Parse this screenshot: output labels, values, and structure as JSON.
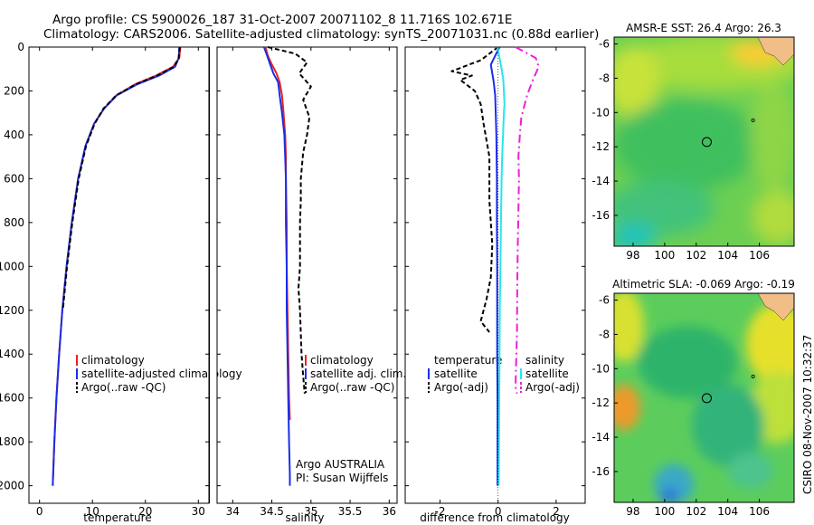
{
  "header": {
    "title_line1": "Argo profile: CS 5900026_187 31-Oct-2007 20071102_8 11.716S 102.671E",
    "title_line2": "Climatology: CARS2006. Satellite-adjusted climatology: synTS_20071031.nc (0.88d earlier)"
  },
  "stamp": "CSIRO 08-Nov-2007 10:32:37",
  "colors": {
    "climatology": "#e8231f",
    "satellite": "#1a2ee8",
    "argo": "#000000",
    "sat_salinity": "#27e6ea",
    "argo_salinity": "#ef1fd6"
  },
  "chart_data": [
    {
      "type": "line",
      "id": "temperature-panel",
      "xlabel": "temperature",
      "xlim": [
        -2,
        32
      ],
      "ylim": [
        2080,
        0
      ],
      "xticks": [
        "0",
        "10",
        "20",
        "30"
      ],
      "xtick_values": [
        0,
        10,
        20,
        30
      ],
      "yticks": [
        "0",
        "200",
        "400",
        "600",
        "800",
        "1000",
        "1200",
        "1400",
        "1600",
        "1800",
        "2000"
      ],
      "ytick_values": [
        0,
        200,
        400,
        600,
        800,
        1000,
        1200,
        1400,
        1600,
        1800,
        2000
      ],
      "legend": [
        "climatology",
        "satellite-adjusted climatology",
        "Argo(..raw -QC)"
      ],
      "series": [
        {
          "name": "climatology",
          "color": "#e8231f",
          "dash": "",
          "x": [
            26.6,
            26.4,
            25.2,
            22.0,
            18.0,
            14.5,
            12.2,
            10.3,
            8.7,
            7.3,
            6.1,
            5.1,
            4.3,
            3.7,
            3.2,
            2.8,
            2.5
          ],
          "y": [
            0,
            50,
            90,
            130,
            170,
            220,
            280,
            350,
            450,
            600,
            800,
            1000,
            1200,
            1400,
            1600,
            1800,
            2000
          ]
        },
        {
          "name": "satellite-adjusted climatology",
          "color": "#1a2ee8",
          "dash": "",
          "x": [
            26.4,
            26.3,
            25.6,
            22.6,
            18.4,
            14.6,
            12.2,
            10.3,
            8.7,
            7.3,
            6.1,
            5.1,
            4.3,
            3.7,
            3.2,
            2.8,
            2.5
          ],
          "y": [
            0,
            50,
            90,
            130,
            170,
            220,
            280,
            350,
            450,
            600,
            800,
            1000,
            1200,
            1400,
            1600,
            1800,
            2000
          ]
        },
        {
          "name": "Argo(..raw -QC)",
          "color": "#000000",
          "dash": "5,3",
          "x": [
            26.5,
            26.3,
            25.4,
            22.2,
            18.2,
            14.5,
            12.1,
            10.4,
            8.8,
            7.4,
            6.2,
            5.2,
            4.4
          ],
          "y": [
            0,
            50,
            90,
            130,
            170,
            220,
            280,
            350,
            450,
            600,
            800,
            1000,
            1200
          ]
        }
      ]
    },
    {
      "type": "line",
      "id": "salinity-panel",
      "xlabel": "salinity",
      "xlim": [
        33.8,
        36.1
      ],
      "ylim": [
        2080,
        0
      ],
      "xticks": [
        "34",
        "34.5",
        "35",
        "35.5",
        "36"
      ],
      "xtick_values": [
        34,
        34.5,
        35,
        35.5,
        36
      ],
      "legend": [
        "climatology",
        "satellite adj. clim.",
        "Argo(..raw -QC)"
      ],
      "annotation": [
        "Argo AUSTRALIA",
        "PI: Susan Wijffels"
      ],
      "series": [
        {
          "name": "climatology",
          "color": "#e8231f",
          "dash": "",
          "x": [
            34.42,
            34.45,
            34.5,
            34.56,
            34.6,
            34.63,
            34.65,
            34.67,
            34.68,
            34.68,
            34.69,
            34.69,
            34.7,
            34.71,
            34.72,
            34.73
          ],
          "y": [
            0,
            40,
            80,
            120,
            160,
            220,
            300,
            400,
            500,
            600,
            800,
            1000,
            1200,
            1400,
            1600,
            1700
          ]
        },
        {
          "name": "satellite adj. clim.",
          "color": "#1a2ee8",
          "dash": "",
          "x": [
            34.4,
            34.44,
            34.48,
            34.52,
            34.58,
            34.6,
            34.63,
            34.66,
            34.67,
            34.68,
            34.68,
            34.69,
            34.69,
            34.7,
            34.71,
            34.72,
            34.73,
            34.73
          ],
          "y": [
            0,
            40,
            80,
            120,
            160,
            220,
            300,
            400,
            500,
            600,
            800,
            1000,
            1200,
            1400,
            1600,
            1800,
            1950,
            2000
          ]
        },
        {
          "name": "Argo(..raw -QC)",
          "color": "#000000",
          "dash": "5,3",
          "x": [
            34.45,
            34.8,
            34.95,
            34.85,
            35.0,
            34.9,
            34.98,
            34.95,
            34.9,
            34.87,
            34.87,
            34.86,
            34.86,
            34.84,
            34.86,
            34.88,
            34.9,
            34.92
          ],
          "y": [
            0,
            30,
            70,
            120,
            180,
            240,
            320,
            400,
            480,
            600,
            700,
            800,
            1000,
            1100,
            1200,
            1400,
            1500,
            1580
          ]
        }
      ]
    },
    {
      "type": "line",
      "id": "difference-panel",
      "xlabel": "difference from climatology",
      "xlim": [
        -3.2,
        3.0
      ],
      "ylim": [
        2080,
        0
      ],
      "xticks": [
        "-2",
        "0",
        "2"
      ],
      "xtick_values": [
        -2,
        0,
        2
      ],
      "legend_temperature": [
        "temperature",
        "satellite",
        "Argo(-adj)"
      ],
      "legend_salinity": [
        "salinity",
        "satellite",
        "Argo(-adj)"
      ],
      "series": [
        {
          "name": "satellite",
          "color": "#1a2ee8",
          "dash": "",
          "x": [
            0.05,
            -0.1,
            -0.25,
            -0.2,
            -0.15,
            -0.1,
            -0.08,
            -0.06,
            -0.05,
            -0.04,
            -0.04,
            -0.03,
            -0.03,
            -0.03,
            -0.02,
            -0.02
          ],
          "y": [
            0,
            40,
            80,
            120,
            160,
            220,
            300,
            400,
            500,
            600,
            800,
            1000,
            1200,
            1400,
            1600,
            2000
          ]
        },
        {
          "name": "Argo(-adj)",
          "color": "#000000",
          "dash": "5,3",
          "x": [
            0.0,
            -0.6,
            -1.6,
            -0.9,
            -1.3,
            -0.8,
            -0.6,
            -0.5,
            -0.3,
            -0.3,
            -0.2,
            -0.25,
            -0.4,
            -0.6,
            -0.3
          ],
          "y": [
            0,
            60,
            110,
            130,
            150,
            200,
            260,
            350,
            500,
            700,
            900,
            1050,
            1150,
            1250,
            1300
          ]
        },
        {
          "name": "satellite",
          "color": "#27e6ea",
          "dash": "",
          "x": [
            -0.02,
            0.05,
            0.12,
            0.18,
            0.2,
            0.22,
            0.2,
            0.17,
            0.14,
            0.12,
            0.1,
            0.08,
            0.06,
            0.05,
            0.04,
            0.03,
            0.02
          ],
          "y": [
            0,
            50,
            100,
            150,
            200,
            260,
            300,
            400,
            500,
            600,
            800,
            1000,
            1200,
            1400,
            1600,
            1800,
            2000
          ]
        },
        {
          "name": "Argo(-adj)",
          "color": "#ef1fd6",
          "dash": "9,4,2,4",
          "x": [
            0.6,
            1.3,
            1.4,
            1.2,
            1.0,
            0.8,
            0.75,
            0.7,
            0.72,
            0.7,
            0.68,
            0.66,
            0.65,
            0.62,
            0.6,
            0.65
          ],
          "y": [
            0,
            50,
            90,
            150,
            220,
            320,
            400,
            500,
            600,
            750,
            900,
            1100,
            1300,
            1450,
            1550,
            1580
          ]
        }
      ]
    },
    {
      "type": "heatmap",
      "id": "sst-map",
      "title": "AMSR-E SST: 26.4 Argo: 26.3",
      "xlim": [
        96.8,
        108.2
      ],
      "ylim": [
        -17.8,
        -5.6
      ],
      "xticks": [
        "98",
        "100",
        "102",
        "104",
        "106"
      ],
      "xtick_values": [
        98,
        100,
        102,
        104,
        106
      ],
      "yticks": [
        "-6",
        "-8",
        "-10",
        "-12",
        "-14",
        "-16"
      ],
      "ytick_values": [
        -6,
        -8,
        -10,
        -12,
        -14,
        -16
      ],
      "marker": {
        "lon": 102.67,
        "lat": -11.72
      }
    },
    {
      "type": "heatmap",
      "id": "sla-map",
      "title": "Altimetric SLA: -0.069 Argo: -0.19",
      "xlim": [
        96.8,
        108.2
      ],
      "ylim": [
        -17.8,
        -5.6
      ],
      "xticks": [
        "98",
        "100",
        "102",
        "104",
        "106"
      ],
      "xtick_values": [
        98,
        100,
        102,
        104,
        106
      ],
      "yticks": [
        "-6",
        "-8",
        "-10",
        "-12",
        "-14",
        "-16"
      ],
      "ytick_values": [
        -6,
        -8,
        -10,
        -12,
        -14,
        -16
      ],
      "marker": {
        "lon": 102.67,
        "lat": -11.72
      }
    }
  ]
}
